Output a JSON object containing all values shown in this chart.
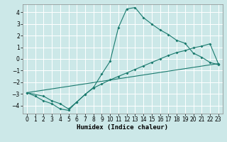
{
  "xlabel": "Humidex (Indice chaleur)",
  "bg_color": "#cce8e8",
  "grid_color": "#ffffff",
  "line_color": "#1a7a6e",
  "xlim": [
    -0.5,
    23.5
  ],
  "ylim": [
    -4.7,
    4.7
  ],
  "yticks": [
    -4,
    -3,
    -2,
    -1,
    0,
    1,
    2,
    3,
    4
  ],
  "xticks": [
    0,
    1,
    2,
    3,
    4,
    5,
    6,
    7,
    8,
    9,
    10,
    11,
    12,
    13,
    14,
    15,
    16,
    17,
    18,
    19,
    20,
    21,
    22,
    23
  ],
  "line1_x": [
    0,
    1,
    2,
    3,
    4,
    5,
    6,
    7,
    8,
    9,
    10,
    11,
    12,
    13,
    14,
    15,
    16,
    17,
    18,
    19,
    20,
    21,
    22,
    23
  ],
  "line1_y": [
    -2.9,
    -3.2,
    -3.6,
    -3.85,
    -4.3,
    -4.42,
    -3.7,
    -3.05,
    -2.45,
    -1.3,
    -0.2,
    2.7,
    4.3,
    4.42,
    3.55,
    3.0,
    2.5,
    2.1,
    1.6,
    1.35,
    0.5,
    0.15,
    -0.3,
    -0.5
  ],
  "line2_x": [
    0,
    2,
    3,
    4,
    5,
    6,
    7,
    8,
    9,
    10,
    11,
    12,
    13,
    14,
    15,
    16,
    17,
    18,
    19,
    20,
    21,
    22,
    23
  ],
  "line2_y": [
    -2.9,
    -3.2,
    -3.6,
    -3.85,
    -4.3,
    -3.7,
    -3.05,
    -2.5,
    -2.15,
    -1.8,
    -1.5,
    -1.2,
    -0.9,
    -0.6,
    -0.3,
    0.0,
    0.3,
    0.55,
    0.72,
    0.95,
    1.1,
    1.3,
    -0.4
  ],
  "line3_x": [
    0,
    23
  ],
  "line3_y": [
    -2.9,
    -0.4
  ],
  "marker_size": 2.0,
  "line_width": 0.8,
  "tick_fontsize": 5.5,
  "xlabel_fontsize": 6.5
}
